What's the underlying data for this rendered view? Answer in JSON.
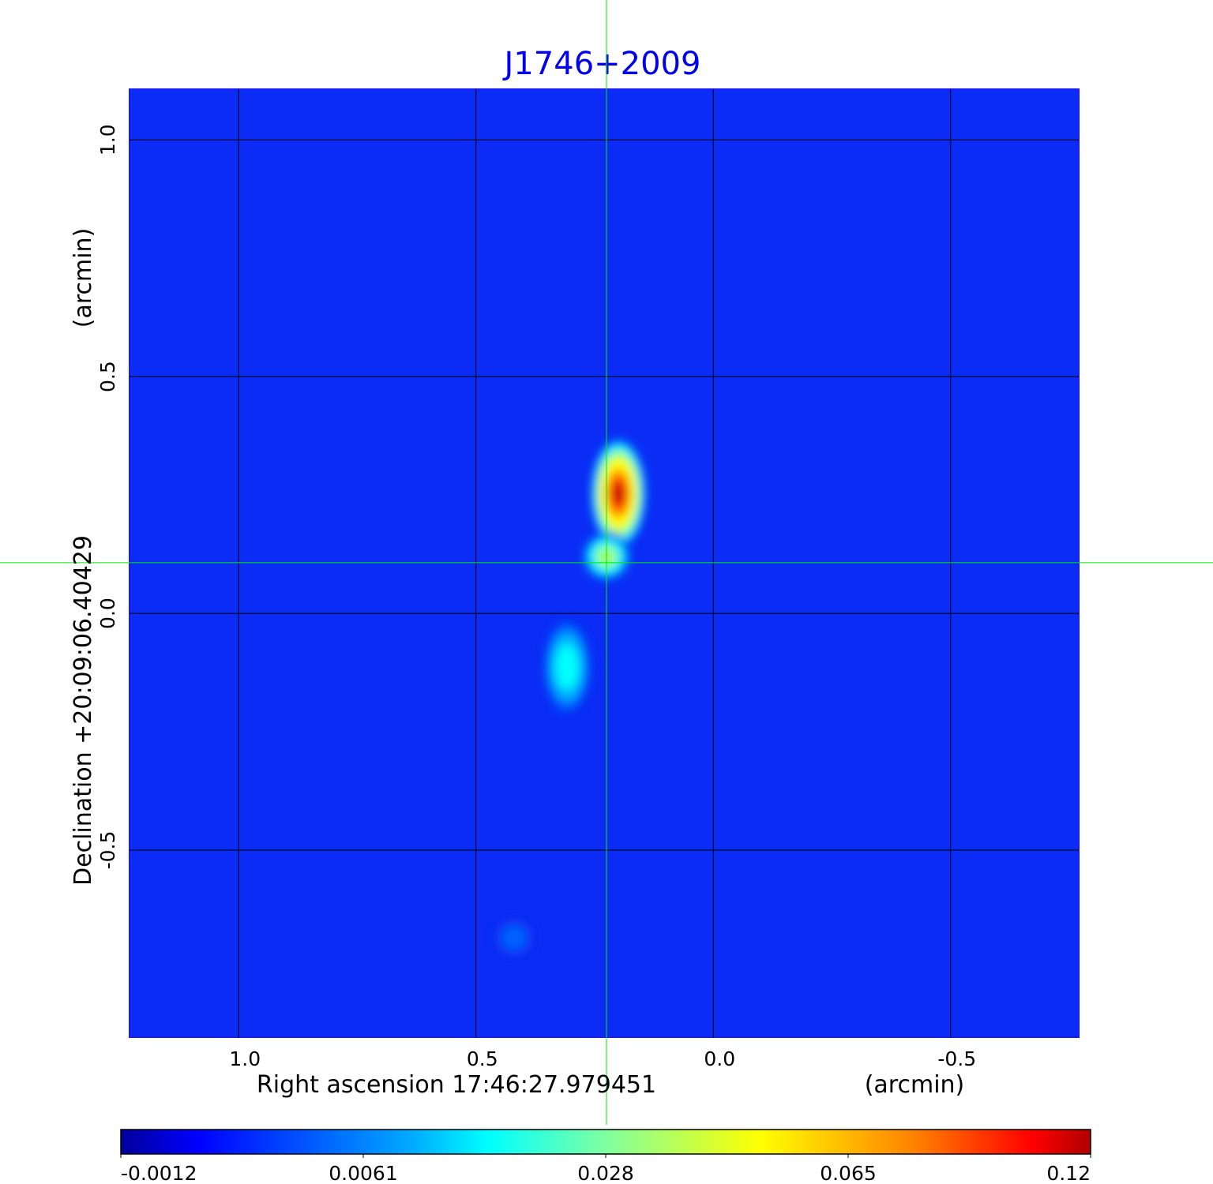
{
  "chart_data": {
    "type": "heatmap",
    "title": "J1746+2009",
    "title_color": "#0000ee",
    "xlabel": "Right ascension  17:46:27.979451",
    "xlabel_unit": "(arcmin)",
    "ylabel": "Declination  +20:09:06.40429",
    "ylabel_unit": "(arcmin)",
    "xlim": [
      1.23,
      -0.77
    ],
    "ylim": [
      -0.895,
      1.107
    ],
    "xticks": [
      1.0,
      0.5,
      0.0,
      -0.5
    ],
    "xtick_labels": [
      "1.0",
      "0.5",
      "0.0",
      "-0.5"
    ],
    "yticks": [
      1.0,
      0.5,
      0.0,
      -0.5
    ],
    "ytick_labels": [
      "1.0",
      "0.5",
      "0.0",
      "-0.5"
    ],
    "grid": true,
    "crosshair": {
      "ra": 0.225,
      "dec": 0.107,
      "color": "#00ee00"
    },
    "colormap": "jet",
    "background_value": 0.0,
    "colorbar": {
      "range": [
        -0.0012,
        0.12
      ],
      "tick_labels": [
        "-0.0012",
        "0.0061",
        "0.028",
        "0.065",
        "0.12"
      ],
      "placement": "bottom"
    },
    "sources": [
      {
        "ra": 0.2,
        "dec": 0.253,
        "peak": 0.12,
        "sra": 0.045,
        "sdec": 0.09
      },
      {
        "ra": 0.225,
        "dec": 0.12,
        "peak": 0.05,
        "sra": 0.04,
        "sdec": 0.04
      },
      {
        "ra": 0.308,
        "dec": -0.113,
        "peak": 0.032,
        "sra": 0.04,
        "sdec": 0.08
      },
      {
        "ra": 0.42,
        "dec": -0.685,
        "peak": 0.01,
        "sra": 0.035,
        "sdec": 0.035
      }
    ]
  }
}
